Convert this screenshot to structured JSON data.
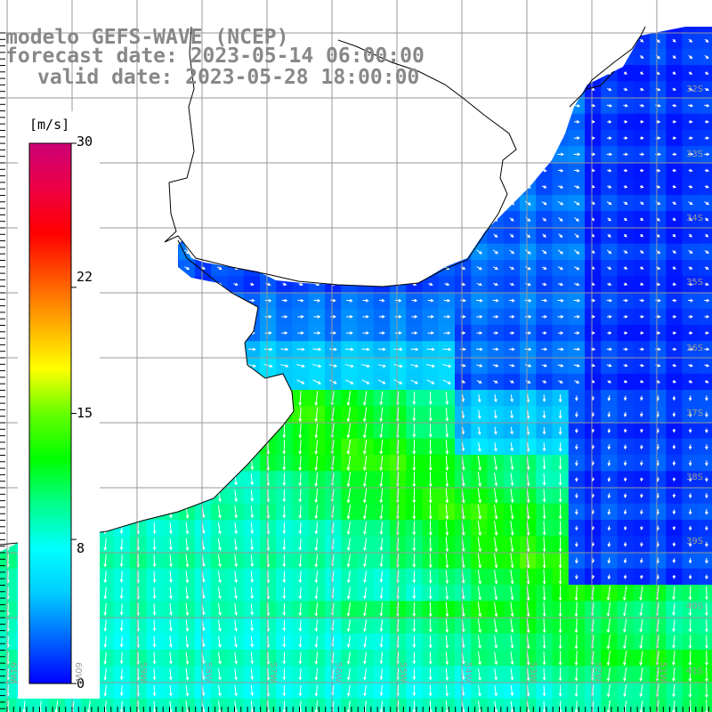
{
  "title": {
    "model": "modelo GEFS-WAVE (NCEP)",
    "forecast": "forecast date: 2023-05-14 06:00:00",
    "valid": "valid date: 2023-05-28 18:00:00"
  },
  "colorbar": {
    "unit": "[m/s]",
    "ticks": [
      "30",
      "22",
      "15",
      "8",
      "0"
    ],
    "tick_values": [
      30,
      22,
      15,
      8,
      0
    ],
    "min": 0,
    "max": 30,
    "stops": [
      "#0000ff",
      "#0066ff",
      "#00ccff",
      "#00ffff",
      "#00ff88",
      "#00ff00",
      "#66ff00",
      "#ffff00",
      "#ffaa00",
      "#ff5500",
      "#ff0000",
      "#ee0044",
      "#cc0077"
    ]
  },
  "map": {
    "lat_labels": [
      "32S",
      "33S",
      "34S",
      "35S",
      "36S",
      "37S",
      "38S",
      "39S",
      "40S",
      "41S"
    ],
    "lon_labels": [
      "61W",
      "60W",
      "59W",
      "58W",
      "57W",
      "56W",
      "55W",
      "54W",
      "53W",
      "52W",
      "51W"
    ],
    "land_color": "#ffffff",
    "grid_color": "#999999",
    "coast_color": "#000000",
    "arrow_color": "#ffffff"
  }
}
